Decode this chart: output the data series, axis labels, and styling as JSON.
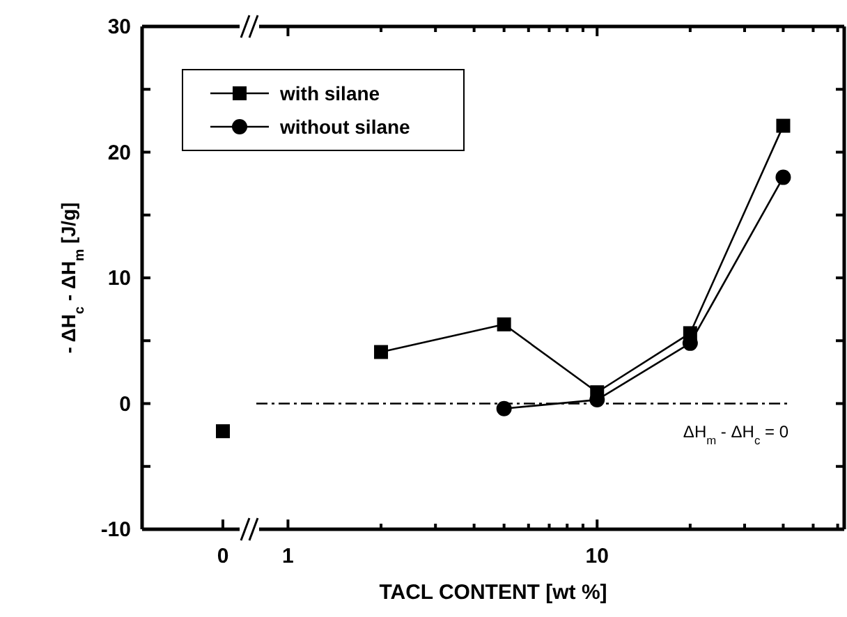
{
  "chart_data": [
    {
      "type": "line",
      "ylabel": "- ΔH$_{c}$ - ΔH$_{m}$  [J/g]",
      "categories": [
        "0"
      ],
      "ylim": [
        -10,
        30
      ],
      "yticks": [
        -10,
        {
          "value": -5,
          "label": null
        },
        0,
        {
          "value": 5,
          "label": null
        },
        10,
        {
          "value": 15,
          "label": null
        },
        20,
        {
          "value": 25,
          "label": null
        },
        30
      ],
      "series": [
        {
          "color": "#000000",
          "marker": "square",
          "values": [
            -2.2
          ]
        }
      ]
    },
    {
      "type": "line",
      "xlabel": "TACL CONTENT [wt %]",
      "log": "x",
      "xlim": [
        0.79,
        63
      ],
      "ylim": [
        -10,
        30
      ],
      "tick_labels": "x",
      "legend": "top left",
      "xticks": [
        1,
        {
          "value": 2,
          "label": null
        },
        {
          "value": 3,
          "label": null
        },
        {
          "value": 4,
          "label": null
        },
        {
          "value": 5,
          "label": null
        },
        {
          "value": 6,
          "label": null
        },
        {
          "value": 7,
          "label": null
        },
        {
          "value": 8,
          "label": null
        },
        {
          "value": 9,
          "label": null
        },
        10,
        {
          "value": 20,
          "label": null
        },
        {
          "value": 30,
          "label": null
        },
        {
          "value": 40,
          "label": null
        },
        {
          "value": 50,
          "label": null
        },
        {
          "value": 60,
          "label": null
        }
      ],
      "yticks": [
        {
          "value": -10,
          "label": null
        },
        {
          "value": -5,
          "label": null
        },
        {
          "value": 0,
          "label": null
        },
        {
          "value": 5,
          "label": null
        },
        {
          "value": 10,
          "label": null
        },
        {
          "value": 15,
          "label": null
        },
        {
          "value": 20,
          "label": null
        },
        {
          "value": 25,
          "label": null
        },
        {
          "value": 30,
          "label": null
        }
      ],
      "ref_lines": [
        {
          "axis": "y",
          "value": 0,
          "label": "ΔH$_{m}$ -  ΔH$_{c}$ = 0",
          "line_style": "dashdot",
          "color": "#000000"
        }
      ],
      "series": [
        {
          "name": "with silane",
          "color": "#000000",
          "marker": "square",
          "x": [
            2,
            5,
            10,
            20,
            40
          ],
          "values": [
            4.1,
            6.3,
            0.9,
            5.6,
            22.1
          ]
        },
        {
          "name": "without silane",
          "color": "#000000",
          "marker": "circle",
          "x": [
            5,
            10,
            20,
            40
          ],
          "values": [
            -0.4,
            0.3,
            4.8,
            18.0
          ]
        }
      ]
    }
  ]
}
